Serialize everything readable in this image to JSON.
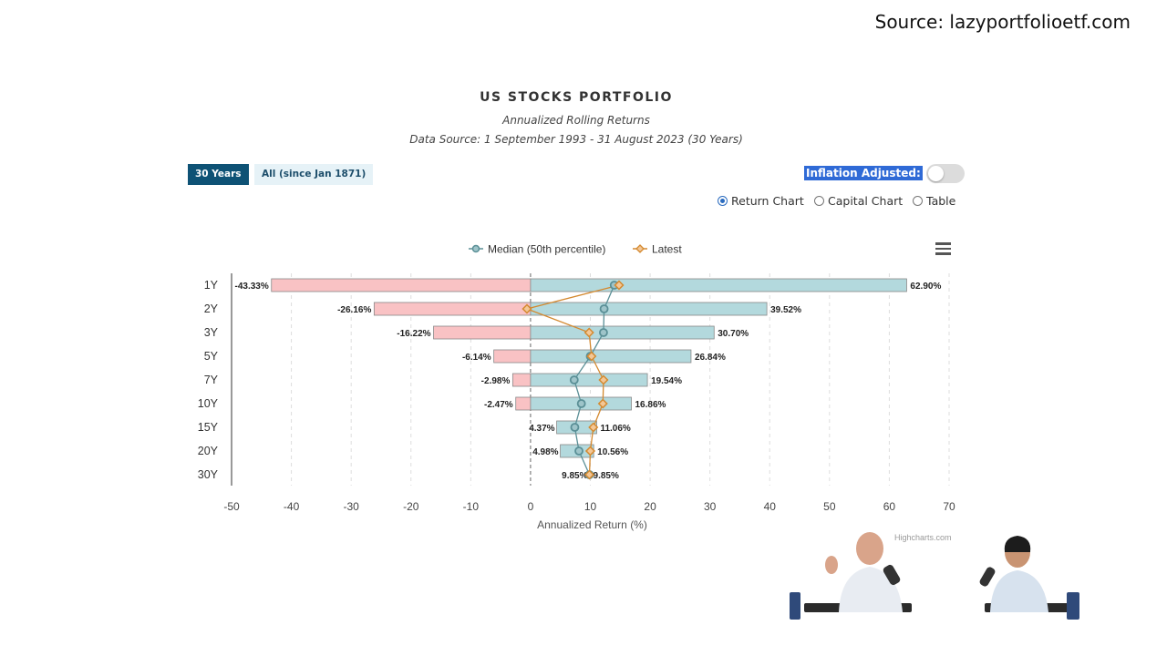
{
  "source_text": "Source: lazyportfolioetf.com",
  "header": {
    "title": "US STOCKS PORTFOLIO",
    "subtitle": "Annualized Rolling Returns",
    "data_source": "Data Source: 1 September 1993 - 31 August 2023 (30 Years)"
  },
  "controls": {
    "period_active": "30 Years",
    "period_other": "All (since Jan 1871)",
    "inflation_label": "Inflation Adjusted:",
    "inflation_on": false,
    "radios": [
      {
        "label": "Return Chart",
        "selected": true
      },
      {
        "label": "Capital Chart",
        "selected": false
      },
      {
        "label": "Table",
        "selected": false
      }
    ]
  },
  "credit": "Highcharts.com",
  "colors": {
    "positive_bar": "#b3d9dd",
    "negative_bar": "#f9c2c4",
    "median": "#5a8f96",
    "latest": "#d4892f"
  },
  "chart_data": {
    "type": "bar",
    "orientation": "horizontal",
    "categories": [
      "1Y",
      "2Y",
      "3Y",
      "5Y",
      "7Y",
      "10Y",
      "15Y",
      "20Y",
      "30Y"
    ],
    "range_low": [
      -43.33,
      -26.16,
      -16.22,
      -6.14,
      -2.98,
      -2.47,
      4.37,
      4.98,
      9.85
    ],
    "range_high": [
      62.9,
      39.52,
      30.7,
      26.84,
      19.54,
      16.86,
      11.06,
      10.56,
      9.85
    ],
    "low_labels": [
      "-43.33%",
      "-26.16%",
      "-16.22%",
      "-6.14%",
      "-2.98%",
      "-2.47%",
      "4.37%",
      "4.98%",
      "9.85%"
    ],
    "high_labels": [
      "62.90%",
      "39.52%",
      "30.70%",
      "26.84%",
      "19.54%",
      "16.86%",
      "11.06%",
      "10.56%",
      "9.85%"
    ],
    "series": [
      {
        "name": "Median (50th percentile)",
        "values": [
          14.0,
          12.3,
          12.2,
          10.0,
          7.3,
          8.5,
          7.4,
          8.1,
          9.85
        ]
      },
      {
        "name": "Latest",
        "values": [
          14.8,
          -0.6,
          9.8,
          10.2,
          12.2,
          12.1,
          10.5,
          10.0,
          9.85
        ]
      }
    ],
    "xlabel": "Annualized Return (%)",
    "xlim": [
      -50,
      70
    ],
    "xticks": [
      -50,
      -40,
      -30,
      -20,
      -10,
      0,
      10,
      20,
      30,
      40,
      50,
      60,
      70
    ],
    "grid": true,
    "legend": "top-center"
  }
}
